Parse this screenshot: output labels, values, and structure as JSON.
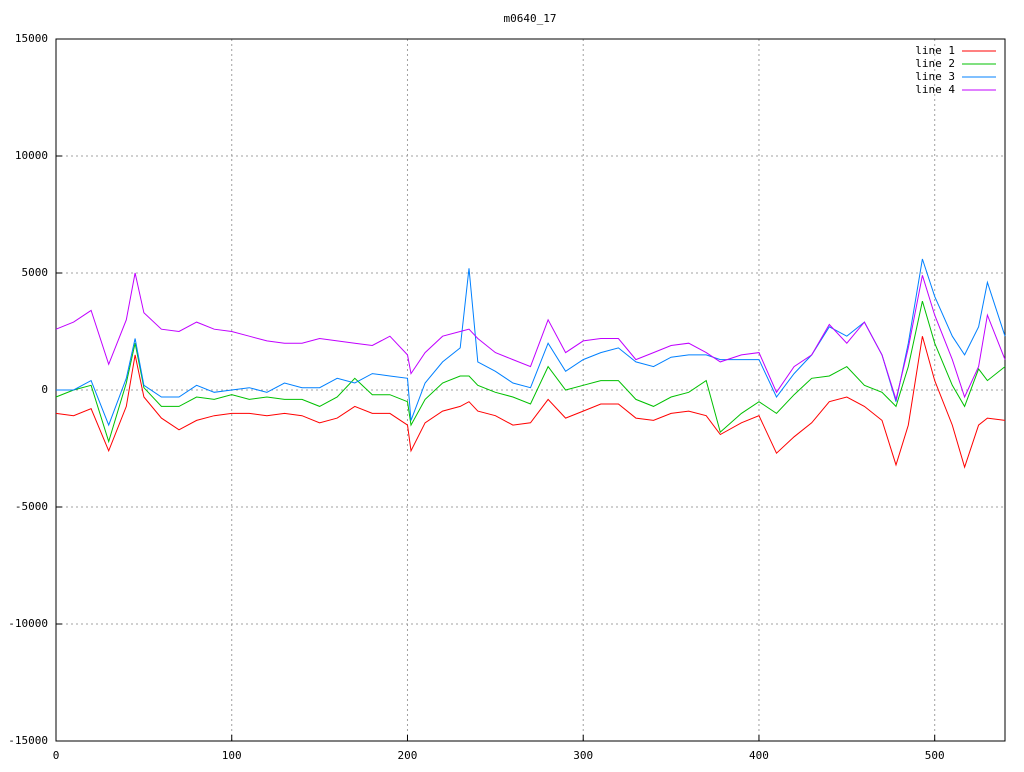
{
  "chart_data": {
    "type": "line",
    "title": "m0640_17",
    "x": [
      0,
      10,
      20,
      30,
      40,
      45,
      50,
      60,
      70,
      80,
      90,
      100,
      110,
      120,
      130,
      140,
      150,
      160,
      170,
      180,
      190,
      200,
      202,
      210,
      220,
      230,
      235,
      240,
      250,
      260,
      270,
      280,
      290,
      300,
      310,
      320,
      330,
      340,
      350,
      360,
      370,
      378,
      390,
      400,
      410,
      420,
      430,
      440,
      450,
      460,
      470,
      478,
      485,
      493,
      500,
      510,
      517,
      525,
      530,
      540
    ],
    "series": [
      {
        "name": "line 1",
        "color": "#ff0000",
        "values": [
          -1000,
          -1100,
          -800,
          -2600,
          -700,
          1500,
          -300,
          -1200,
          -1700,
          -1300,
          -1100,
          -1000,
          -1000,
          -1100,
          -1000,
          -1100,
          -1400,
          -1200,
          -700,
          -1000,
          -1000,
          -1500,
          -2600,
          -1400,
          -900,
          -700,
          -500,
          -900,
          -1100,
          -1500,
          -1400,
          -400,
          -1200,
          -900,
          -600,
          -600,
          -1200,
          -1300,
          -1000,
          -900,
          -1100,
          -1900,
          -1400,
          -1100,
          -2700,
          -2000,
          -1400,
          -500,
          -300,
          -700,
          -1300,
          -3200,
          -1500,
          2300,
          400,
          -1500,
          -3300,
          -1500,
          -1200,
          -1300
        ]
      },
      {
        "name": "line 2",
        "color": "#00c000",
        "values": [
          -300,
          0,
          200,
          -2200,
          300,
          2000,
          100,
          -700,
          -700,
          -300,
          -400,
          -200,
          -400,
          -300,
          -400,
          -400,
          -700,
          -300,
          500,
          -200,
          -200,
          -500,
          -1500,
          -400,
          300,
          600,
          600,
          200,
          -100,
          -300,
          -600,
          1000,
          0,
          200,
          400,
          400,
          -400,
          -700,
          -300,
          -100,
          400,
          -1800,
          -1000,
          -500,
          -1000,
          -200,
          500,
          600,
          1000,
          200,
          -100,
          -700,
          1000,
          3800,
          2000,
          200,
          -700,
          900,
          400,
          1000
        ]
      },
      {
        "name": "line 3",
        "color": "#0080ff",
        "values": [
          0,
          0,
          400,
          -1500,
          500,
          2200,
          200,
          -300,
          -300,
          200,
          -100,
          0,
          100,
          -100,
          300,
          100,
          100,
          500,
          300,
          700,
          600,
          500,
          -1300,
          300,
          1200,
          1800,
          5200,
          1200,
          800,
          300,
          100,
          2000,
          800,
          1300,
          1600,
          1800,
          1200,
          1000,
          1400,
          1500,
          1500,
          1300,
          1300,
          1300,
          -300,
          700,
          1500,
          2700,
          2300,
          2900,
          1500,
          -500,
          2000,
          5600,
          4000,
          2300,
          1500,
          2700,
          4600,
          2300
        ]
      },
      {
        "name": "line 4",
        "color": "#c000ff",
        "values": [
          2600,
          2900,
          3400,
          1100,
          3000,
          5000,
          3300,
          2600,
          2500,
          2900,
          2600,
          2500,
          2300,
          2100,
          2000,
          2000,
          2200,
          2100,
          2000,
          1900,
          2300,
          1500,
          700,
          1600,
          2300,
          2500,
          2600,
          2200,
          1600,
          1300,
          1000,
          3000,
          1600,
          2100,
          2200,
          2200,
          1300,
          1600,
          1900,
          2000,
          1600,
          1200,
          1500,
          1600,
          -100,
          1000,
          1500,
          2800,
          2000,
          2900,
          1500,
          -400,
          1800,
          4900,
          3200,
          1300,
          -300,
          1000,
          3200,
          1300
        ]
      }
    ],
    "xlim": [
      0,
      540
    ],
    "ylim": [
      -15000,
      15000
    ],
    "xticks": [
      0,
      100,
      200,
      300,
      400,
      500
    ],
    "yticks": [
      -15000,
      -10000,
      -5000,
      0,
      5000,
      10000,
      15000
    ],
    "grid": true,
    "legend": "top-right"
  }
}
